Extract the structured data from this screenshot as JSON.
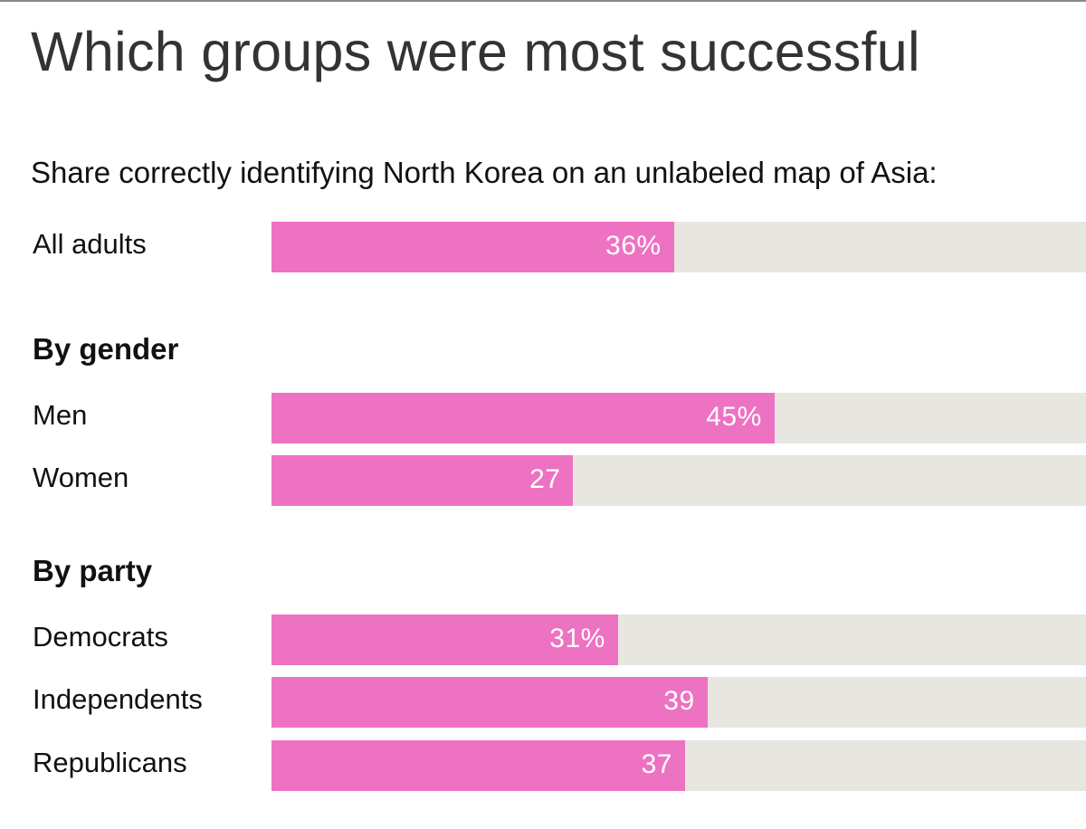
{
  "chart_data": {
    "type": "bar",
    "orientation": "horizontal",
    "title": "Which groups were most successful",
    "subtitle": "Share correctly identifying North Korea on an unlabeled map of Asia:",
    "xlim": [
      0,
      100
    ],
    "groups": [
      {
        "heading": "",
        "rows": [
          {
            "label": "All adults",
            "value": 36,
            "value_label": "36%"
          }
        ]
      },
      {
        "heading": "By gender",
        "rows": [
          {
            "label": "Men",
            "value": 45,
            "value_label": "45%"
          },
          {
            "label": "Women",
            "value": 27,
            "value_label": "27"
          }
        ]
      },
      {
        "heading": "By party",
        "rows": [
          {
            "label": "Democrats",
            "value": 31,
            "value_label": "31%"
          },
          {
            "label": "Independents",
            "value": 39,
            "value_label": "39"
          },
          {
            "label": "Republicans",
            "value": 37,
            "value_label": "37"
          }
        ]
      }
    ],
    "colors": {
      "bar": "#ee72c2",
      "track": "#e8e6e1",
      "bar_text": "#ffffff"
    }
  }
}
